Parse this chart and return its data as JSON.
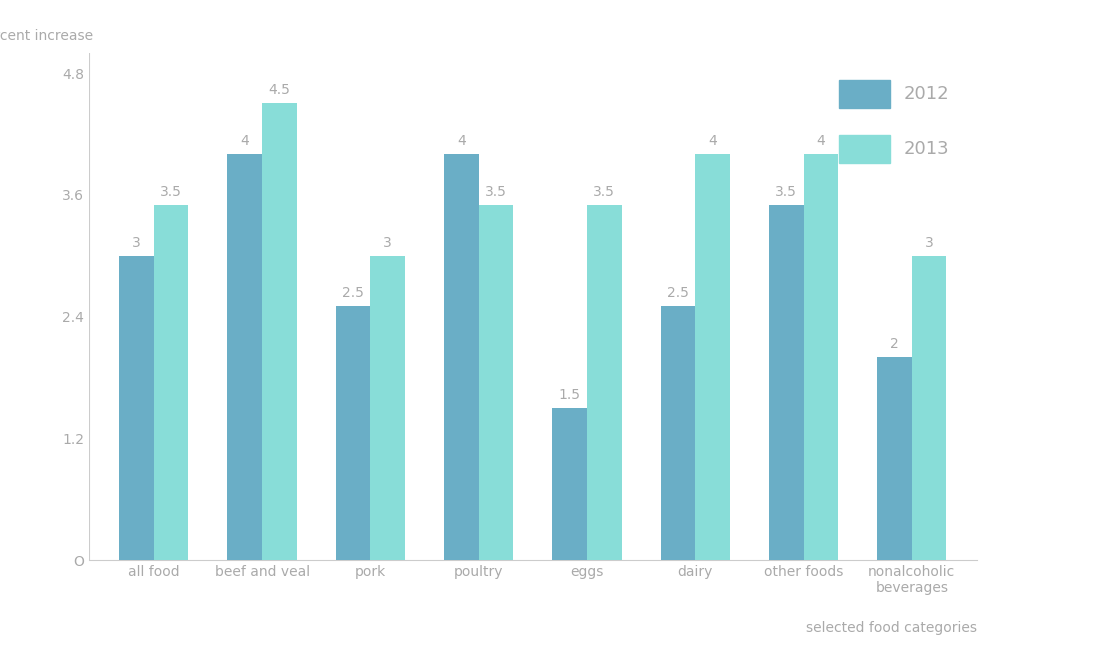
{
  "categories": [
    "all food",
    "beef and veal",
    "pork",
    "poultry",
    "eggs",
    "dairy",
    "other foods",
    "nonalcoholic\nbeverages"
  ],
  "values_2012": [
    3,
    4,
    2.5,
    4,
    1.5,
    2.5,
    3.5,
    2
  ],
  "values_2013": [
    3.5,
    4.5,
    3,
    3.5,
    3.5,
    4,
    4,
    3
  ],
  "color_2012": "#6aaec6",
  "color_2013": "#88ddd8",
  "ylabel": "Percent increase",
  "xlabel": "selected food categories",
  "ylim": [
    0,
    5.0
  ],
  "yticks": [
    0,
    1.2,
    2.4,
    3.6,
    4.8
  ],
  "ytick_labels": [
    "O",
    "1.2",
    "2.4",
    "3.6",
    "4.8"
  ],
  "legend_labels": [
    "2012",
    "2013"
  ],
  "bar_width": 0.32,
  "label_fontsize": 10,
  "tick_fontsize": 10,
  "axis_label_fontsize": 10,
  "legend_fontsize": 13,
  "text_color": "#aaaaaa",
  "axis_color": "#cccccc"
}
